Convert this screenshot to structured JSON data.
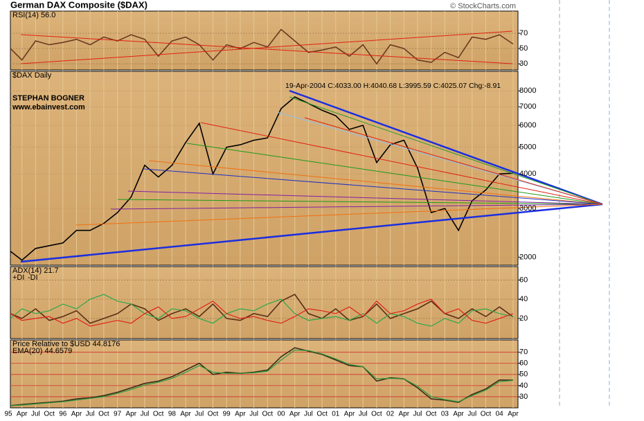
{
  "title": "German DAX Composite ($DAX)",
  "source": "© StockCharts.com",
  "chart_data": [
    {
      "type": "line",
      "ylim": [
        22,
        99
      ],
      "yticks": [
        30,
        50,
        70
      ],
      "grid_color": "#9a7a4a",
      "series": [
        {
          "name": "RSI(14) 56.0",
          "color": "#6b3a1f",
          "values": [
            50,
            35,
            60,
            55,
            58,
            62,
            55,
            65,
            60,
            68,
            62,
            40,
            60,
            65,
            55,
            35,
            55,
            50,
            58,
            52,
            75,
            60,
            45,
            48,
            52,
            40,
            55,
            30,
            55,
            50,
            35,
            32,
            45,
            38,
            65,
            62,
            68,
            56.0
          ]
        }
      ]
    },
    {
      "type": "line",
      "log_scale": true,
      "ylim": [
        1870,
        9410
      ],
      "yticks": [
        2000,
        3000,
        4000,
        5000,
        6000,
        7000,
        8000
      ],
      "grid_color": "#c49a60",
      "annotations": [
        "STEPHAN BOGNER",
        "www.ebainvest.com",
        "19-Apr-2004 C:4033.00 H:4040.68 L:3995.59 C:4025.07 Chg:-8.91"
      ],
      "series": [
        {
          "name": "$DAX Daily",
          "color": "#000000",
          "values": [
            2100,
            1950,
            2150,
            2200,
            2250,
            2500,
            2500,
            2650,
            2900,
            3300,
            4300,
            3900,
            4300,
            5200,
            6100,
            4000,
            5000,
            5100,
            5300,
            5400,
            6900,
            7600,
            7200,
            6800,
            6500,
            5800,
            6000,
            4400,
            5100,
            5300,
            4200,
            2900,
            3000,
            2500,
            3200,
            3500,
            4000,
            4025.07
          ]
        }
      ]
    },
    {
      "type": "line",
      "ylim": [
        -1,
        74
      ],
      "yticks": [
        20,
        40,
        60
      ],
      "grid_color": "#9a7a4a",
      "series": [
        {
          "name": "ADX(14) 21.7",
          "color": "#5a2e14",
          "values": [
            25,
            20,
            30,
            18,
            22,
            28,
            15,
            20,
            25,
            35,
            30,
            18,
            25,
            30,
            22,
            35,
            20,
            18,
            25,
            22,
            38,
            45,
            25,
            20,
            30,
            18,
            22,
            35,
            20,
            25,
            30,
            38,
            25,
            20,
            30,
            22,
            32,
            21.7
          ]
        },
        {
          "name": "+DI",
          "color": "#2aa84a",
          "values": [
            20,
            30,
            25,
            28,
            35,
            30,
            40,
            45,
            38,
            35,
            25,
            20,
            30,
            28,
            20,
            15,
            25,
            30,
            28,
            35,
            40,
            25,
            18,
            20,
            22,
            18,
            25,
            15,
            25,
            22,
            15,
            12,
            20,
            15,
            28,
            30,
            25,
            22
          ]
        },
        {
          "name": "-DI",
          "color": "#e0201a",
          "values": [
            25,
            18,
            20,
            22,
            15,
            20,
            12,
            15,
            18,
            15,
            25,
            32,
            20,
            22,
            30,
            38,
            25,
            20,
            22,
            18,
            15,
            22,
            30,
            28,
            25,
            32,
            22,
            38,
            25,
            28,
            35,
            40,
            25,
            30,
            18,
            15,
            20,
            25
          ]
        }
      ]
    },
    {
      "type": "line",
      "ylim": [
        20,
        81
      ],
      "yticks": [
        30,
        40,
        50,
        60,
        70
      ],
      "grid_color": "#d0302a",
      "categories": [
        "95",
        "Apr",
        "Jul",
        "Oct",
        "96",
        "Apr",
        "Jul",
        "Oct",
        "97",
        "Apr",
        "Jul",
        "Oct",
        "98",
        "Apr",
        "Jul",
        "Oct",
        "99",
        "Apr",
        "Jul",
        "Oct",
        "00",
        "Apr",
        "Jul",
        "Oct",
        "01",
        "Apr",
        "Jul",
        "Oct",
        "02",
        "Apr",
        "Jul",
        "Oct",
        "03",
        "Apr",
        "Jul",
        "Oct",
        "04",
        "Apr"
      ],
      "series": [
        {
          "name": "Price Relative to $USD 44.8176",
          "color": "#3a2a1a",
          "values": [
            22,
            23,
            24,
            25,
            26,
            28,
            29,
            31,
            34,
            38,
            42,
            44,
            48,
            54,
            60,
            50,
            52,
            51,
            52,
            54,
            66,
            74,
            71,
            68,
            63,
            58,
            57,
            44,
            47,
            46,
            38,
            28,
            27,
            25,
            32,
            37,
            45,
            44.8176
          ]
        },
        {
          "name": "EMA(20) 44.6579",
          "color": "#2a9a3a",
          "values": [
            22,
            22.5,
            23.5,
            24.5,
            25.5,
            27,
            28.5,
            30,
            33,
            36.5,
            40.5,
            43,
            46.5,
            52,
            58,
            52,
            51,
            51,
            51.5,
            53,
            63,
            72,
            71.5,
            68.5,
            64,
            59,
            57,
            46,
            46.5,
            46,
            39.5,
            30,
            27.5,
            25.5,
            31,
            36,
            43.5,
            44.6579
          ]
        }
      ]
    }
  ]
}
